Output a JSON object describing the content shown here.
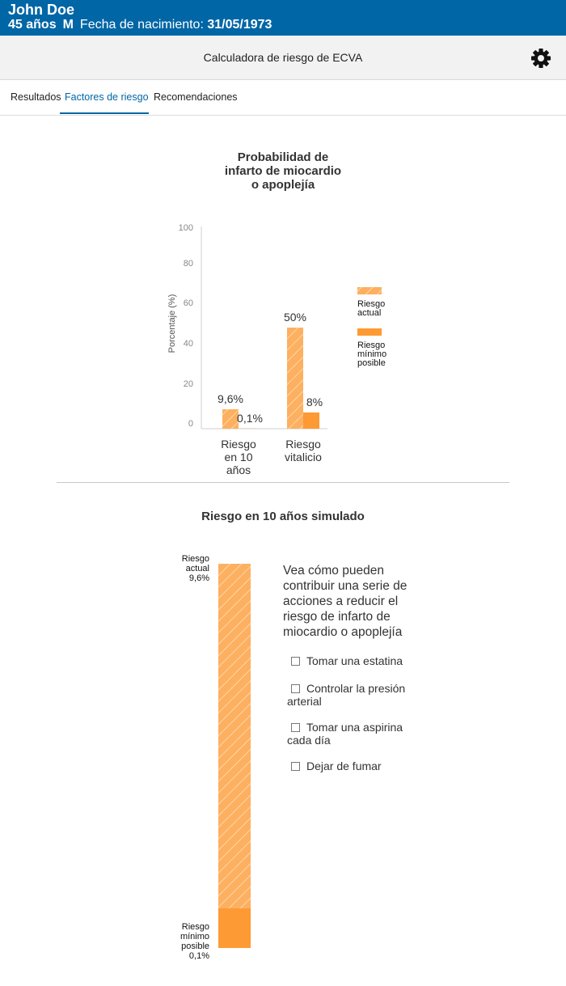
{
  "patient": {
    "name": "John Doe",
    "age": "45 años",
    "sex": "M",
    "dob_label": "Fecha de nacimiento:",
    "dob": "31/05/1973"
  },
  "toolbar": {
    "title": "Calculadora de riesgo de ECVA",
    "settings_icon": "gear-icon"
  },
  "tabs": [
    {
      "label": "Resultados",
      "active": false
    },
    {
      "label": "Factores de riesgo",
      "active": true
    },
    {
      "label": "Recomendaciones",
      "active": false
    }
  ],
  "probability_chart": {
    "title_lines": [
      "Probabilidad de",
      "infarto de miocardio",
      "o apoplejía"
    ]
  },
  "chart_data": {
    "type": "bar",
    "title": "Probabilidad de infarto de miocardio o apoplejía",
    "ylabel": "Porcentaje (%)",
    "ylim": [
      0,
      100
    ],
    "yticks": [
      "0",
      "20",
      "40",
      "60",
      "80",
      "100"
    ],
    "categories": [
      [
        "Riesgo",
        "en 10",
        "años"
      ],
      [
        "Riesgo",
        "vitalicio"
      ]
    ],
    "series": [
      {
        "name": [
          "Riesgo",
          "actual"
        ],
        "values": [
          9.6,
          50
        ],
        "labels": [
          "9,6%",
          "50%"
        ],
        "color": "#fdb060",
        "pattern": "hatched"
      },
      {
        "name": [
          "Riesgo",
          "mínimo",
          "posible"
        ],
        "values": [
          0.1,
          8
        ],
        "labels": [
          "0,1%",
          "8%"
        ],
        "color": "#fd9a33",
        "pattern": "solid"
      }
    ],
    "grid": false,
    "legend": "right"
  },
  "simulation": {
    "title": "Riesgo en 10 años simulado",
    "current_label": [
      "Riesgo",
      "actual",
      "9,6%"
    ],
    "current_value": 9.6,
    "minimum_label": [
      "Riesgo",
      "mínimo",
      "posible",
      "0,1%"
    ],
    "minimum_value": 0.1,
    "intro": "Vea cómo pueden contribuir una serie de acciones a reducir el riesgo de infarto de miocardio o apoplejía",
    "actions": [
      {
        "label": "Tomar una estatina",
        "checked": false
      },
      {
        "label": "Controlar la presión arterial",
        "checked": false
      },
      {
        "label": "Tomar una aspirina cada día",
        "checked": false
      },
      {
        "label": "Dejar de fumar",
        "checked": false
      }
    ]
  },
  "colors": {
    "header_blue": "#0066a6",
    "current_risk": "#fdb060",
    "minimum_risk": "#fd9a33"
  }
}
